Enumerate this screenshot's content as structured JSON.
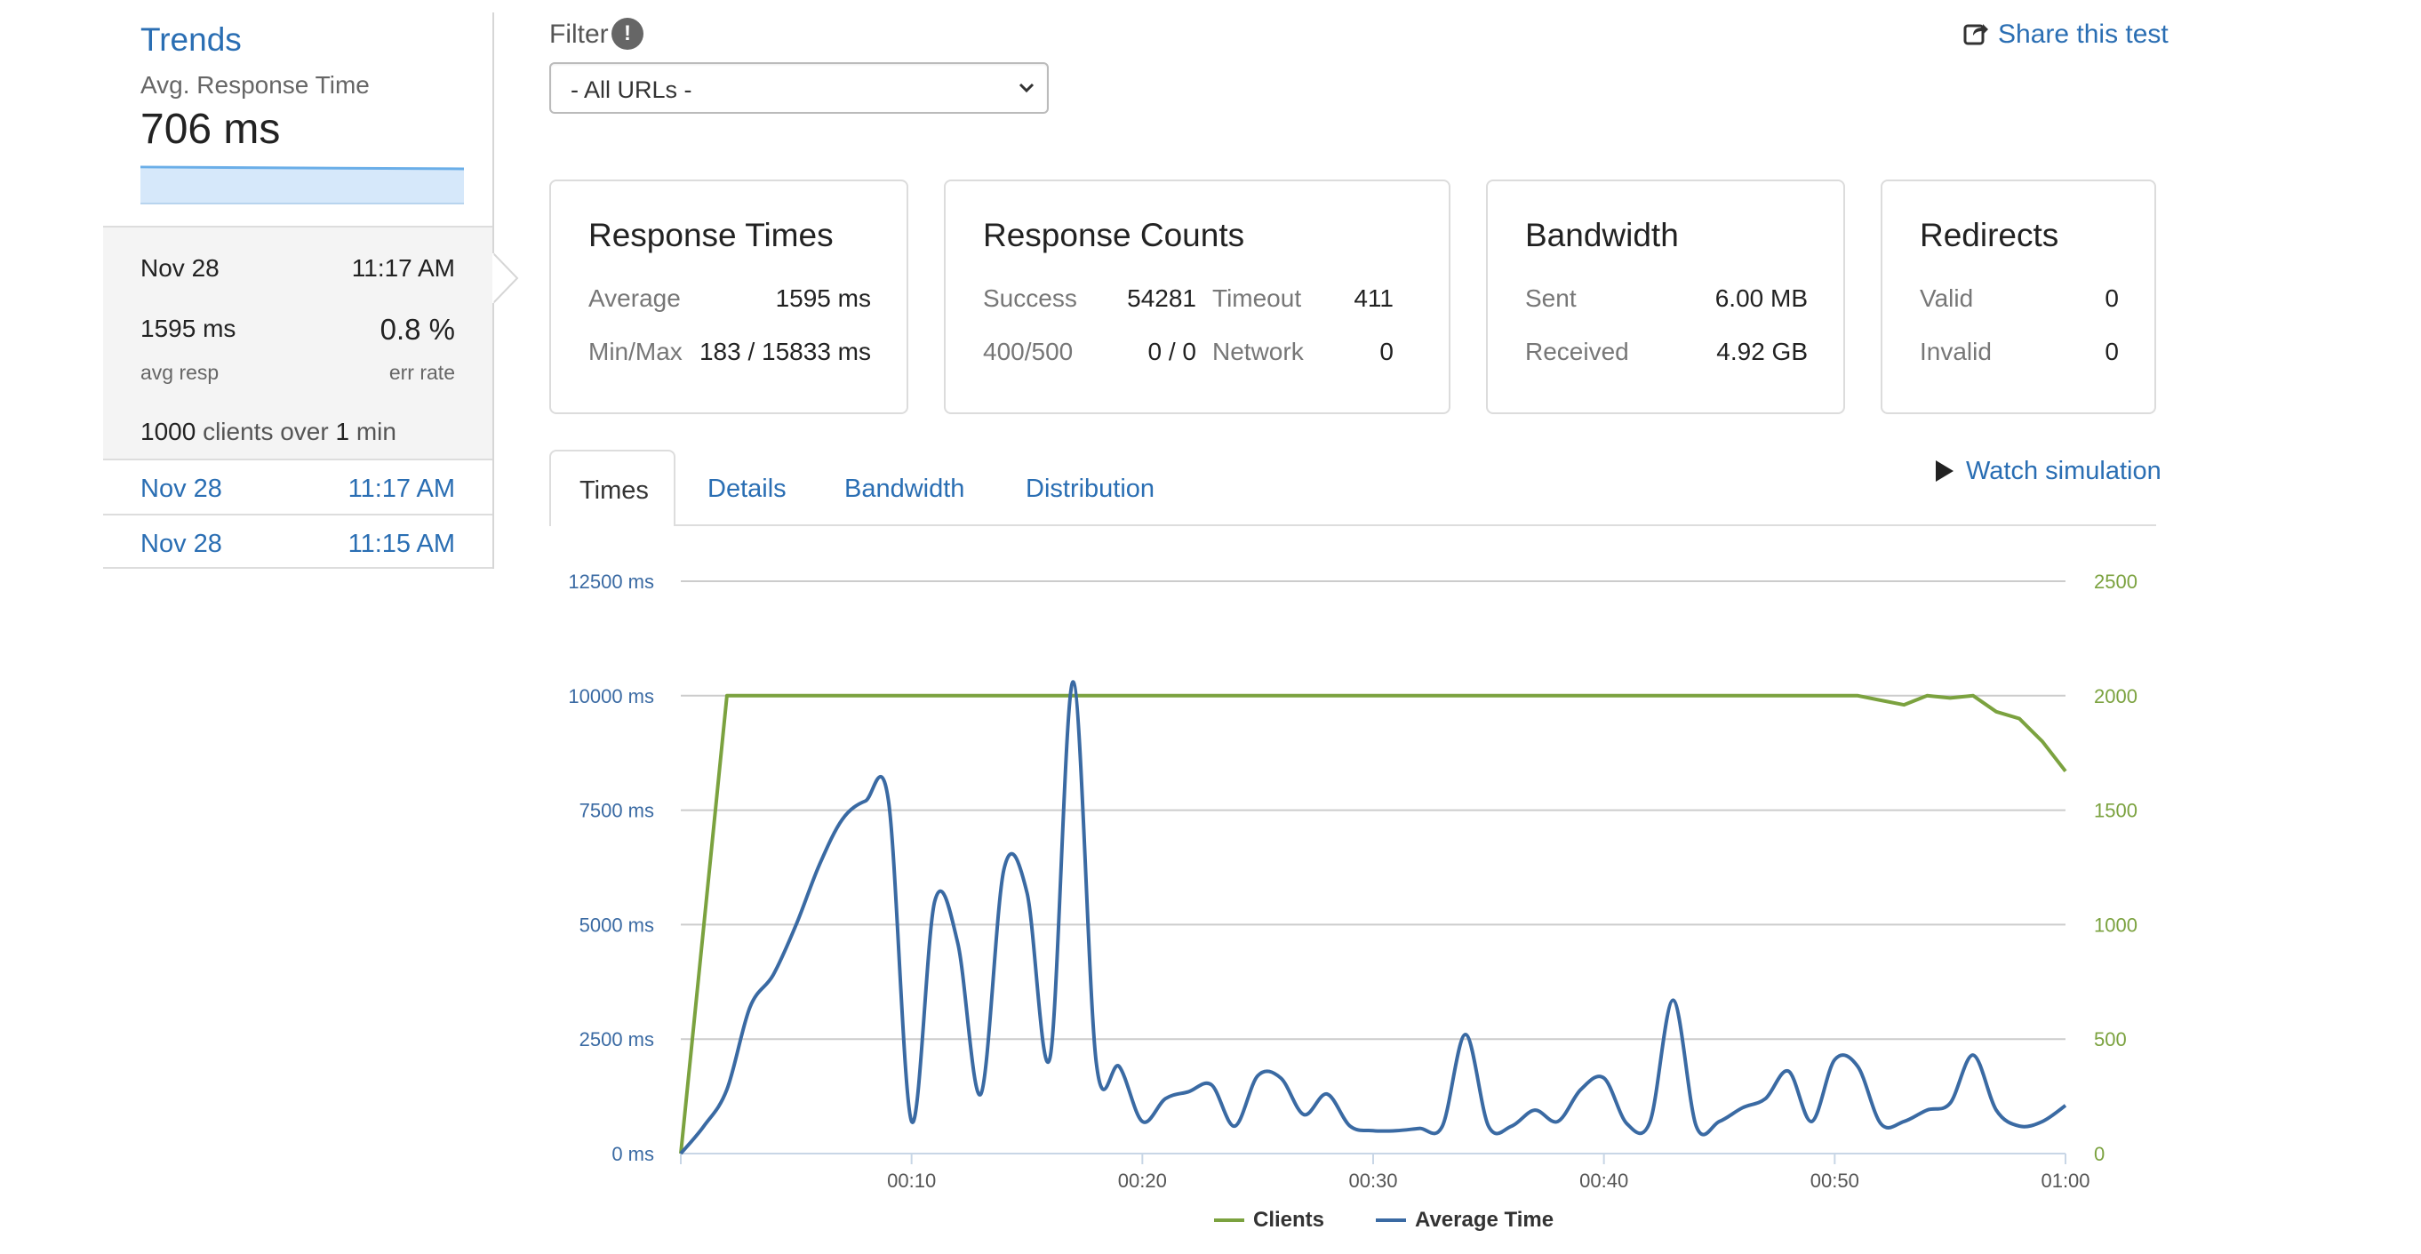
{
  "sidebar": {
    "title": "Trends",
    "metric_label": "Avg. Response Time",
    "metric_value": "706 ms",
    "active_run": {
      "date": "Nov 28",
      "time": "11:17 AM",
      "avg_resp": "1595 ms",
      "avg_resp_caption": "avg resp",
      "err_rate": "0.8 %",
      "err_rate_caption": "err rate",
      "clients_count": "1000",
      "clients_text_a": "clients over",
      "clients_minutes": "1",
      "clients_text_b": "min"
    },
    "runs": [
      {
        "date": "Nov 28",
        "time": "11:17 AM"
      },
      {
        "date": "Nov 28",
        "time": "11:15 AM"
      }
    ]
  },
  "filter": {
    "label": "Filter",
    "info_glyph": "!",
    "selected": "- All URLs -"
  },
  "share_label": "Share this test",
  "cards": {
    "response_times": {
      "title": "Response Times",
      "average_label": "Average",
      "average_value": "1595 ms",
      "minmax_label": "Min/Max",
      "minmax_value": "183 / 15833 ms"
    },
    "response_counts": {
      "title": "Response Counts",
      "success_label": "Success",
      "success_value": "54281",
      "timeout_label": "Timeout",
      "timeout_value": "411",
      "err_label": "400/500",
      "err_value": "0 / 0",
      "network_label": "Network",
      "network_value": "0"
    },
    "bandwidth": {
      "title": "Bandwidth",
      "sent_label": "Sent",
      "sent_value": "6.00 MB",
      "received_label": "Received",
      "received_value": "4.92 GB"
    },
    "redirects": {
      "title": "Redirects",
      "valid_label": "Valid",
      "valid_value": "0",
      "invalid_label": "Invalid",
      "invalid_value": "0"
    }
  },
  "tabs": [
    {
      "label": "Times",
      "active": true
    },
    {
      "label": "Details",
      "active": false
    },
    {
      "label": "Bandwidth",
      "active": false
    },
    {
      "label": "Distribution",
      "active": false
    }
  ],
  "watch_label": "Watch simulation",
  "colors": {
    "link": "#2a6eb3",
    "clients": "#7ba23f",
    "average_time": "#3a6aa3",
    "grid": "#cccccc"
  },
  "chart_data": {
    "type": "line",
    "x_unit": "seconds",
    "x_ticks": [
      "00:10",
      "00:20",
      "00:30",
      "00:40",
      "00:50",
      "01:00"
    ],
    "x_range": [
      0,
      60
    ],
    "y_left": {
      "ticks": [
        "0 ms",
        "2500 ms",
        "5000 ms",
        "7500 ms",
        "10000 ms",
        "12500 ms"
      ],
      "range": [
        0,
        12500
      ]
    },
    "y_right": {
      "ticks": [
        "0",
        "500",
        "1000",
        "1500",
        "2000",
        "2500"
      ],
      "range": [
        0,
        2500
      ]
    },
    "legend": {
      "placement": "bottom-center",
      "items": [
        "Clients",
        "Average Time"
      ]
    },
    "series": [
      {
        "name": "Clients",
        "axis": "right",
        "points": [
          [
            0,
            0
          ],
          [
            1,
            1000
          ],
          [
            2,
            2000
          ],
          [
            10,
            2000
          ],
          [
            20,
            2000
          ],
          [
            30,
            2000
          ],
          [
            40,
            2000
          ],
          [
            50,
            2000
          ],
          [
            51,
            2000
          ],
          [
            52,
            1980
          ],
          [
            53,
            1960
          ],
          [
            54,
            2000
          ],
          [
            55,
            1990
          ],
          [
            56,
            2000
          ],
          [
            57,
            1930
          ],
          [
            58,
            1900
          ],
          [
            59,
            1800
          ],
          [
            60,
            1670
          ]
        ]
      },
      {
        "name": "Average Time",
        "axis": "left",
        "points": [
          [
            0,
            0
          ],
          [
            1,
            600
          ],
          [
            2,
            1400
          ],
          [
            3,
            3200
          ],
          [
            4,
            3900
          ],
          [
            5,
            5000
          ],
          [
            6,
            6300
          ],
          [
            7,
            7300
          ],
          [
            8,
            7700
          ],
          [
            9,
            7700
          ],
          [
            10,
            700
          ],
          [
            11,
            5500
          ],
          [
            12,
            4600
          ],
          [
            13,
            1300
          ],
          [
            14,
            6200
          ],
          [
            15,
            5700
          ],
          [
            16,
            2100
          ],
          [
            17,
            10300
          ],
          [
            18,
            2000
          ],
          [
            19,
            1900
          ],
          [
            20,
            700
          ],
          [
            21,
            1200
          ],
          [
            22,
            1350
          ],
          [
            23,
            1500
          ],
          [
            24,
            600
          ],
          [
            25,
            1700
          ],
          [
            26,
            1650
          ],
          [
            27,
            850
          ],
          [
            28,
            1300
          ],
          [
            29,
            600
          ],
          [
            30,
            500
          ],
          [
            31,
            500
          ],
          [
            32,
            550
          ],
          [
            33,
            600
          ],
          [
            34,
            2600
          ],
          [
            35,
            600
          ],
          [
            36,
            600
          ],
          [
            37,
            950
          ],
          [
            38,
            700
          ],
          [
            39,
            1400
          ],
          [
            40,
            1650
          ],
          [
            41,
            650
          ],
          [
            42,
            700
          ],
          [
            43,
            3350
          ],
          [
            44,
            600
          ],
          [
            45,
            700
          ],
          [
            46,
            1000
          ],
          [
            47,
            1200
          ],
          [
            48,
            1800
          ],
          [
            49,
            700
          ],
          [
            50,
            2050
          ],
          [
            51,
            1900
          ],
          [
            52,
            650
          ],
          [
            53,
            700
          ],
          [
            54,
            950
          ],
          [
            55,
            1100
          ],
          [
            56,
            2150
          ],
          [
            57,
            950
          ],
          [
            58,
            600
          ],
          [
            59,
            700
          ],
          [
            60,
            1050
          ]
        ]
      }
    ]
  }
}
